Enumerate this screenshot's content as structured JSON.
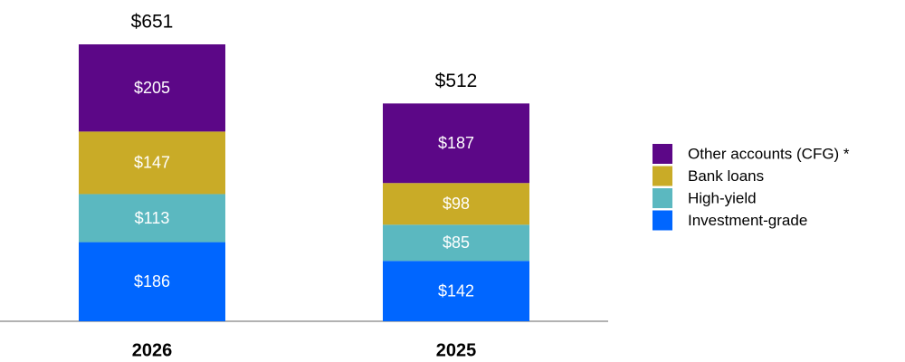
{
  "chart_data": {
    "type": "stacked_bar",
    "categories": [
      "2026",
      "2025"
    ],
    "series": [
      {
        "name": "Investment-grade",
        "color": "#0066ff",
        "values": [
          186,
          142
        ],
        "value_labels": [
          "$186",
          "$142"
        ]
      },
      {
        "name": "High-yield",
        "color": "#5bb8c0",
        "values": [
          113,
          85
        ],
        "value_labels": [
          "$113",
          "$85"
        ]
      },
      {
        "name": "Bank loans",
        "color": "#c9ab27",
        "values": [
          147,
          98
        ],
        "value_labels": [
          "$147",
          "$98"
        ]
      },
      {
        "name": "Other accounts (CFG) *",
        "color": "#5c0787",
        "values": [
          205,
          187
        ],
        "value_labels": [
          "$205",
          "$187"
        ]
      }
    ],
    "totals": [
      651,
      512
    ],
    "total_labels": [
      "$651",
      "$512"
    ],
    "legend": "right"
  }
}
